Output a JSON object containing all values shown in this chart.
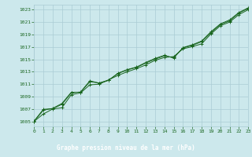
{
  "title": "Graphe pression niveau de la mer (hPa)",
  "background_color": "#cce8ec",
  "label_bg_color": "#1a6620",
  "grid_color": "#aaccd4",
  "line_color": "#1a6620",
  "marker_color": "#1a6620",
  "title_color": "#ffffff",
  "tick_color": "#1a6620",
  "yticks": [
    1005,
    1007,
    1009,
    1011,
    1013,
    1015,
    1017,
    1019,
    1021,
    1023
  ],
  "xticks": [
    0,
    1,
    2,
    3,
    4,
    5,
    6,
    7,
    8,
    9,
    10,
    11,
    12,
    13,
    14,
    15,
    16,
    17,
    18,
    19,
    20,
    21,
    22,
    23
  ],
  "ylim": [
    1004.2,
    1023.8
  ],
  "xlim": [
    0,
    23
  ],
  "series": [
    [
      1005.0,
      1006.2,
      1007.0,
      1007.2,
      1009.3,
      1009.6,
      1010.9,
      1011.0,
      1011.7,
      1012.4,
      1013.0,
      1013.5,
      1014.1,
      1014.85,
      1015.3,
      1015.45,
      1016.7,
      1017.05,
      1017.5,
      1019.1,
      1020.4,
      1021.0,
      1022.2,
      1023.0
    ],
    [
      1005.0,
      1006.8,
      1007.1,
      1007.9,
      1009.7,
      1009.7,
      1011.4,
      1011.2,
      1011.65,
      1012.7,
      1013.3,
      1013.7,
      1014.4,
      1015.05,
      1015.55,
      1015.3,
      1016.85,
      1017.25,
      1017.85,
      1019.3,
      1020.6,
      1021.2,
      1022.45,
      1023.2
    ],
    [
      1005.05,
      1006.95,
      1007.05,
      1007.75,
      1009.6,
      1009.75,
      1011.55,
      1011.15,
      1011.6,
      1012.75,
      1013.35,
      1013.75,
      1014.5,
      1015.15,
      1015.65,
      1015.2,
      1016.9,
      1017.35,
      1017.95,
      1019.45,
      1020.7,
      1021.35,
      1022.55,
      1023.3
    ]
  ]
}
